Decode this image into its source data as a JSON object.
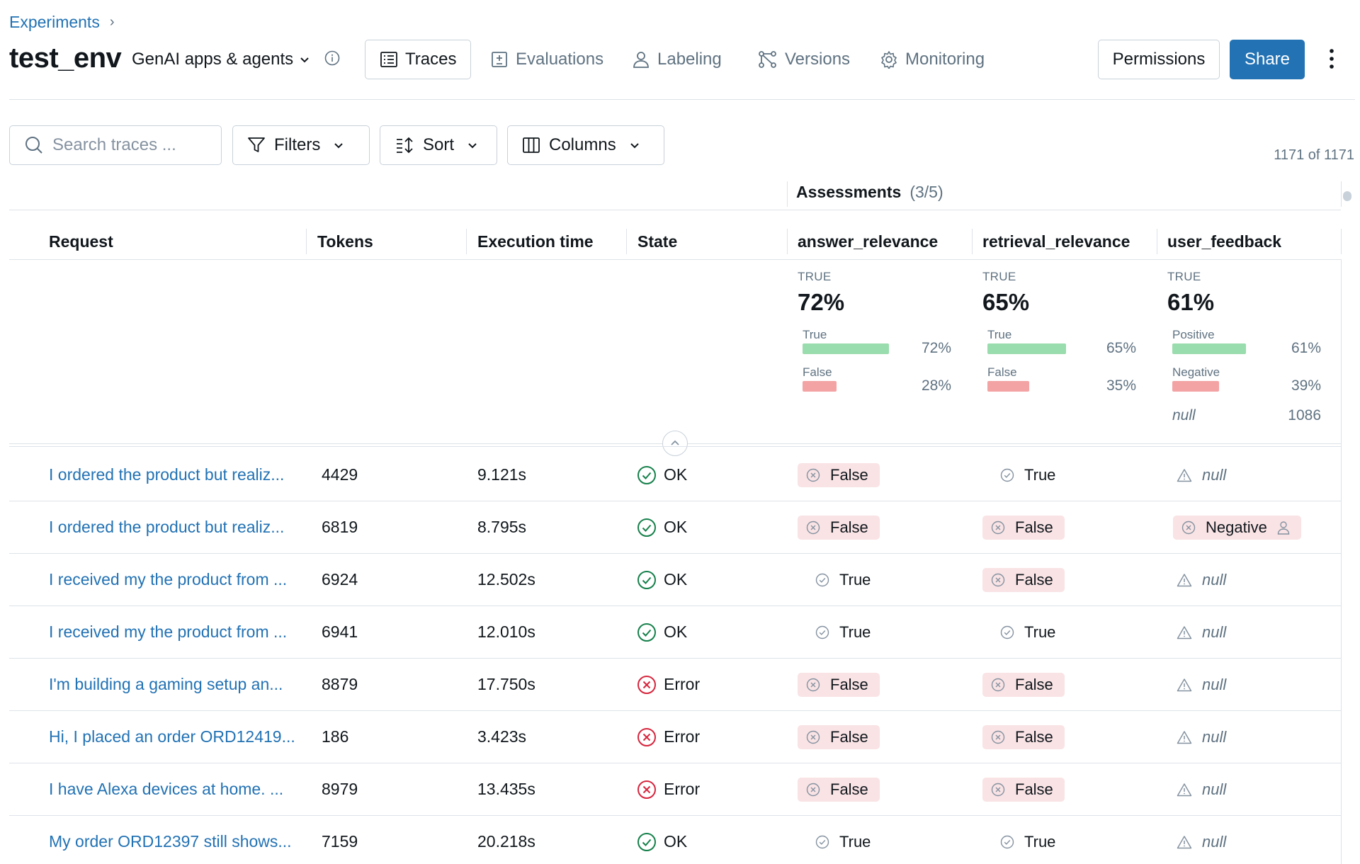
{
  "breadcrumb": {
    "label": "Experiments"
  },
  "header": {
    "title": "test_env",
    "app_type": "GenAI apps & agents",
    "tabs": [
      {
        "label": "Traces",
        "icon": "list-icon",
        "active": true
      },
      {
        "label": "Evaluations",
        "icon": "evaluation-icon",
        "active": false
      },
      {
        "label": "Labeling",
        "icon": "user-icon",
        "active": false
      },
      {
        "label": "Versions",
        "icon": "versions-icon",
        "active": false
      },
      {
        "label": "Monitoring",
        "icon": "gear-icon",
        "active": false
      }
    ],
    "permissions_label": "Permissions",
    "share_label": "Share"
  },
  "toolbar": {
    "search_placeholder": "Search traces ...",
    "filters_label": "Filters",
    "sort_label": "Sort",
    "columns_label": "Columns",
    "count": "1171 of 1171"
  },
  "table": {
    "assessments_label": "Assessments",
    "assessments_count": "(3/5)",
    "columns": [
      "Request",
      "Tokens",
      "Execution time",
      "State",
      "answer_relevance",
      "retrieval_relevance",
      "user_feedback"
    ],
    "summary": [
      {
        "label": "TRUE",
        "pct": "72%",
        "rows": [
          {
            "label": "True",
            "pct": "72%",
            "fraction": 0.72,
            "kind": "pos"
          },
          {
            "label": "False",
            "pct": "28%",
            "fraction": 0.28,
            "kind": "neg"
          }
        ]
      },
      {
        "label": "TRUE",
        "pct": "65%",
        "rows": [
          {
            "label": "True",
            "pct": "65%",
            "fraction": 0.65,
            "kind": "pos"
          },
          {
            "label": "False",
            "pct": "35%",
            "fraction": 0.35,
            "kind": "neg"
          }
        ]
      },
      {
        "label": "TRUE",
        "pct": "61%",
        "rows": [
          {
            "label": "Positive",
            "pct": "61%",
            "fraction": 0.61,
            "kind": "pos"
          },
          {
            "label": "Negative",
            "pct": "39%",
            "fraction": 0.39,
            "kind": "neg"
          }
        ],
        "null_label": "null",
        "null_count": "1086"
      }
    ],
    "rows": [
      {
        "request": "I ordered the product but realiz...",
        "tokens": "4429",
        "time": "9.121s",
        "state": "OK",
        "answer": "False",
        "retrieval": "True",
        "feedback": "null"
      },
      {
        "request": "I ordered the product but realiz...",
        "tokens": "6819",
        "time": "8.795s",
        "state": "OK",
        "answer": "False",
        "retrieval": "False",
        "feedback": "Negative"
      },
      {
        "request": "I received my the product from ...",
        "tokens": "6924",
        "time": "12.502s",
        "state": "OK",
        "answer": "True",
        "retrieval": "False",
        "feedback": "null"
      },
      {
        "request": "I received my the product from ...",
        "tokens": "6941",
        "time": "12.010s",
        "state": "OK",
        "answer": "True",
        "retrieval": "True",
        "feedback": "null"
      },
      {
        "request": "I'm building a gaming setup an...",
        "tokens": "8879",
        "time": "17.750s",
        "state": "Error",
        "answer": "False",
        "retrieval": "False",
        "feedback": "null"
      },
      {
        "request": "Hi, I placed an order ORD12419...",
        "tokens": "186",
        "time": "3.423s",
        "state": "Error",
        "answer": "False",
        "retrieval": "False",
        "feedback": "null"
      },
      {
        "request": "I have Alexa devices at home. ...",
        "tokens": "8979",
        "time": "13.435s",
        "state": "Error",
        "answer": "False",
        "retrieval": "False",
        "feedback": "null"
      },
      {
        "request": "My order ORD12397 still shows...",
        "tokens": "7159",
        "time": "20.218s",
        "state": "OK",
        "answer": "True",
        "retrieval": "True",
        "feedback": "null"
      }
    ]
  },
  "colors": {
    "accent": "#2272b4",
    "ok": "#16804b",
    "error": "#d6253d",
    "bar_pos": "#99dcad",
    "bar_neg": "#f3a3a3"
  }
}
